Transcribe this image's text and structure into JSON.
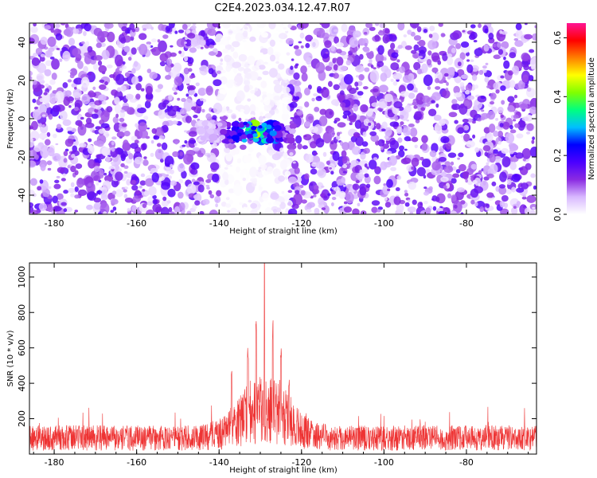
{
  "title": "C2E4.2023.034.12.47.R07",
  "chart_data": [
    {
      "type": "heatmap",
      "xlabel": "Height of straight line (km)",
      "ylabel": "Frequency (Hz)",
      "xlim": [
        -186,
        -63
      ],
      "ylim": [
        -50,
        50
      ],
      "xticks": [
        -180,
        -160,
        -140,
        -120,
        -100,
        -80
      ],
      "yticks": [
        -40,
        -20,
        0,
        20,
        40
      ],
      "colorbar": {
        "label": "Normalized spectral amplitude",
        "range": [
          0,
          0.65
        ],
        "ticks": [
          0.0,
          0.2,
          0.4,
          0.6
        ],
        "colors": [
          "#ffffff",
          "#d8b8ff",
          "#8a2be2",
          "#4b00ff",
          "#0000ff",
          "#00bfff",
          "#00ff80",
          "#80ff00",
          "#ffff00",
          "#ff8000",
          "#ff0000",
          "#ff1493"
        ]
      },
      "background_level": 0.12,
      "features": [
        {
          "x_range": [
            -145,
            -122
          ],
          "y_range": [
            -12,
            -2
          ],
          "peak_amplitude": 0.45,
          "peak_x": -131,
          "peak_y": -7
        },
        {
          "x_range": [
            -140,
            -123
          ],
          "y_range": [
            -50,
            50
          ],
          "amplitude": 0.02
        }
      ],
      "grid": false
    },
    {
      "type": "line",
      "xlabel": "Height of straight line (km)",
      "ylabel": "SNR (10 * v/v)",
      "xlim": [
        -186,
        -63
      ],
      "ylim": [
        0,
        1080
      ],
      "xticks": [
        -180,
        -160,
        -140,
        -120,
        -100,
        -80
      ],
      "yticks": [
        200,
        400,
        600,
        800,
        1000
      ],
      "series": [
        {
          "color": "#ee3333",
          "baseline": 130,
          "peak_x": -129,
          "peak_y": 1080,
          "secondary_peaks": [
            [
              -131,
              800
            ],
            [
              -127,
              760
            ],
            [
              -133,
              620
            ],
            [
              -125,
              600
            ],
            [
              -137,
              480
            ],
            [
              -123,
              430
            ]
          ]
        }
      ],
      "grid": false
    }
  ]
}
